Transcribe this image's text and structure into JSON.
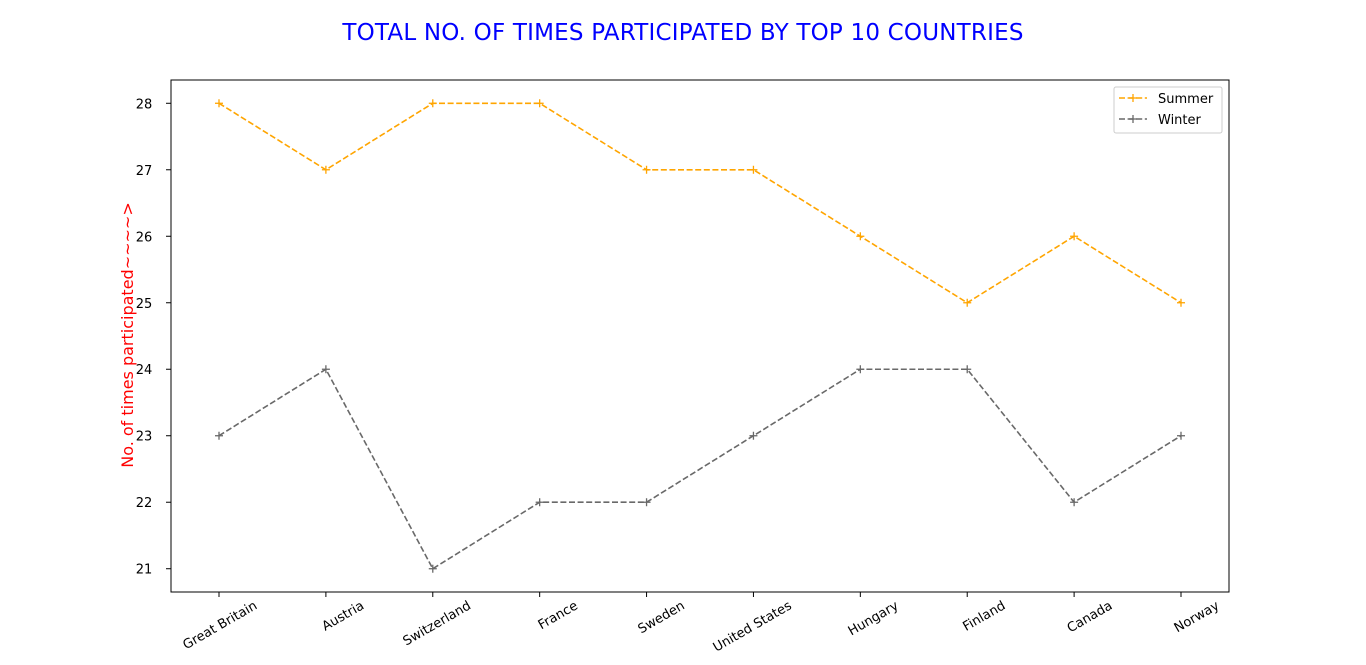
{
  "chart_data": {
    "type": "line",
    "title": "TOTAL NO. OF TIMES PARTICIPATED BY TOP 10 COUNTRIES",
    "xlabel": "",
    "ylabel": "No. of times participated~~~~>",
    "categories": [
      "Great Britain",
      "Austria",
      "Switzerland",
      "France",
      "Sweden",
      "United States",
      "Hungary",
      "Finland",
      "Canada",
      "Norway"
    ],
    "series": [
      {
        "name": "Summer",
        "values": [
          28,
          27,
          28,
          28,
          27,
          27,
          26,
          25,
          26,
          25
        ],
        "color": "#ffa500",
        "line_style": "dashed",
        "marker": "plus"
      },
      {
        "name": "Winter",
        "values": [
          23,
          24,
          21,
          22,
          22,
          23,
          24,
          24,
          22,
          23
        ],
        "color": "#696969",
        "line_style": "dashed",
        "marker": "plus"
      }
    ],
    "yticks": [
      21,
      22,
      23,
      24,
      25,
      26,
      27,
      28
    ],
    "ylim": [
      20.65,
      28.35
    ],
    "grid": false,
    "legend": "top-right",
    "title_color": "#0000ff",
    "ylabel_color": "#ff0000"
  }
}
